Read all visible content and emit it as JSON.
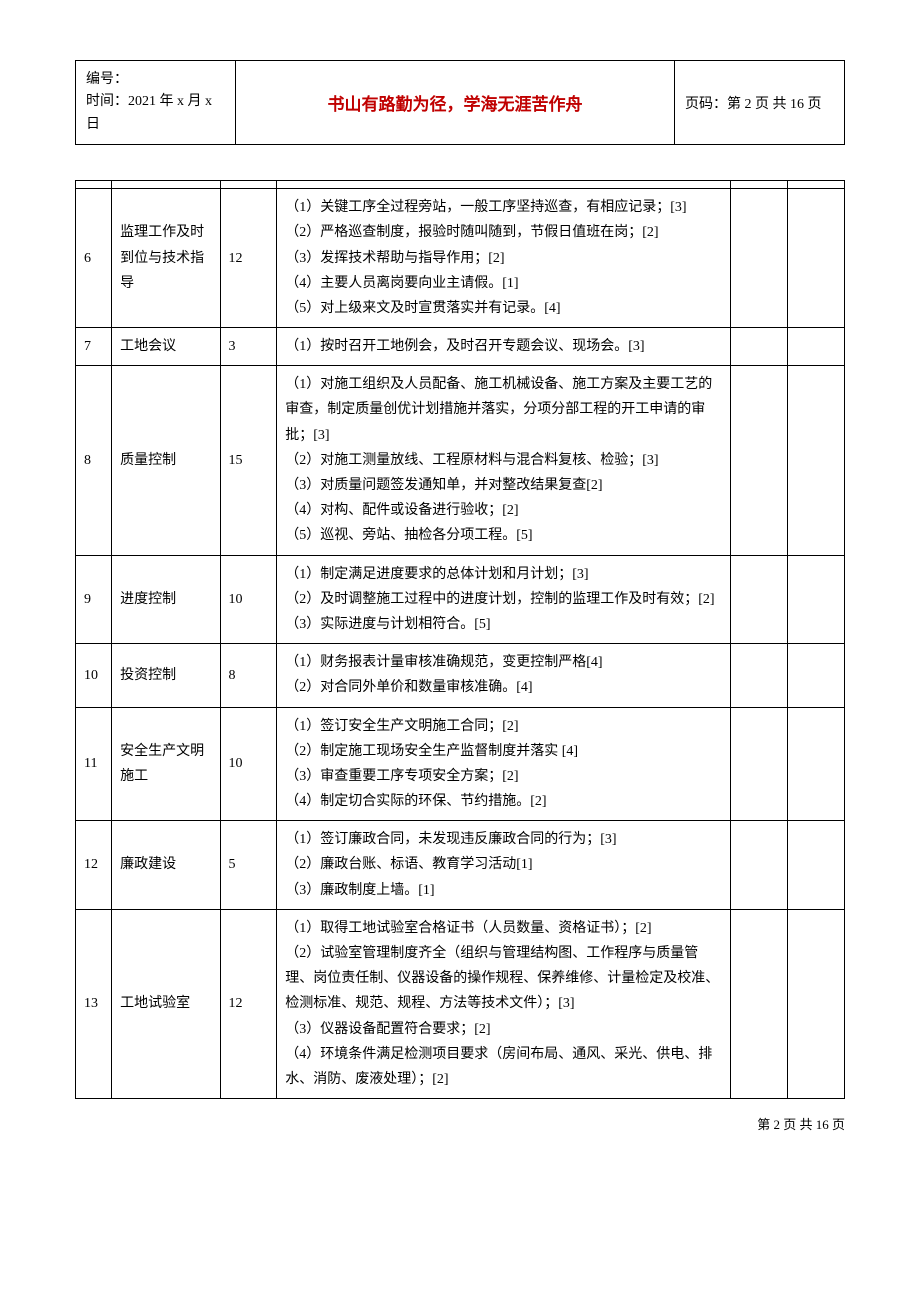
{
  "header": {
    "number_label": "编号：",
    "time_label": "时间：2021 年 x 月 x 日",
    "motto": "书山有路勤为径，学海无涯苦作舟",
    "page_label": "页码：第 2 页 共 16 页"
  },
  "rows": [
    {
      "id": "6",
      "name": "监理工作及时到位与技术指导",
      "score": "12",
      "content": "（1）关键工序全过程旁站，一般工序坚持巡查，有相应记录；[3]\n（2）严格巡查制度，报验时随叫随到，节假日值班在岗；[2]\n（3）发挥技术帮助与指导作用；[2]\n（4）主要人员离岗要向业主请假。[1]\n（5）对上级来文及时宣贯落实并有记录。[4]"
    },
    {
      "id": "7",
      "name": "工地会议",
      "score": "3",
      "content": "（1）按时召开工地例会，及时召开专题会议、现场会。[3]"
    },
    {
      "id": "8",
      "name": "质量控制",
      "score": "15",
      "content": "（1）对施工组织及人员配备、施工机械设备、施工方案及主要工艺的审查，制定质量创优计划措施并落实，分项分部工程的开工申请的审批；[3]\n（2）对施工测量放线、工程原材料与混合料复核、检验；[3]\n（3）对质量问题签发通知单，并对整改结果复查[2]\n（4）对构、配件或设备进行验收；[2]\n（5）巡视、旁站、抽检各分项工程。[5]"
    },
    {
      "id": "9",
      "name": "进度控制",
      "score": "10",
      "content": "（1）制定满足进度要求的总体计划和月计划；[3]\n（2）及时调整施工过程中的进度计划，控制的监理工作及时有效；[2]\n（3）实际进度与计划相符合。[5]"
    },
    {
      "id": "10",
      "name": "投资控制",
      "score": "8",
      "content": "（1）财务报表计量审核准确规范，变更控制严格[4]\n（2）对合同外单价和数量审核准确。[4]"
    },
    {
      "id": "11",
      "name": "安全生产文明施工",
      "score": "10",
      "content": "（1）签订安全生产文明施工合同；[2]\n（2）制定施工现场安全生产监督制度并落实 [4]\n（3）审查重要工序专项安全方案；[2]\n（4）制定切合实际的环保、节约措施。[2]"
    },
    {
      "id": "12",
      "name": "廉政建设",
      "score": "5",
      "content": "（1）签订廉政合同，未发现违反廉政合同的行为；[3]\n（2）廉政台账、标语、教育学习活动[1]\n（3）廉政制度上墙。[1]"
    },
    {
      "id": "13",
      "name": "工地试验室",
      "score": "12",
      "content": "（1）取得工地试验室合格证书（人员数量、资格证书）；[2]\n（2）试验室管理制度齐全（组织与管理结构图、工作程序与质量管理、岗位责任制、仪器设备的操作规程、保养维修、计量检定及校准、检测标准、规范、规程、方法等技术文件）；[3]\n（3）仪器设备配置符合要求；[2]\n（4）环境条件满足检测项目要求（房间布局、通风、采光、供电、排水、消防、废液处理）；[2]"
    }
  ],
  "footer": "第 2 页 共 16 页",
  "colors": {
    "text": "#000000",
    "motto": "#c00000",
    "background": "#ffffff",
    "border": "#000000"
  }
}
